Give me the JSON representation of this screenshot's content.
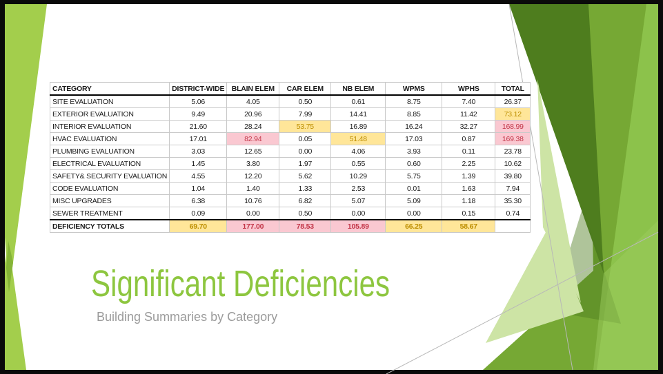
{
  "slide": {
    "title": "Significant Deficiencies",
    "subtitle": "Building Summaries by Category"
  },
  "table": {
    "columns": [
      "CATEGORY",
      "DISTRICT-WIDE",
      "BLAIN ELEM",
      "CAR ELEM",
      "NB ELEM",
      "WPMS",
      "WPHS",
      "TOTAL"
    ],
    "rows": [
      {
        "label": "SITE EVALUATION",
        "values": [
          "5.06",
          "4.05",
          "0.50",
          "0.61",
          "8.75",
          "7.40",
          "26.37"
        ],
        "marks": [
          "",
          "",
          "",
          "",
          "",
          "",
          ""
        ]
      },
      {
        "label": "EXTERIOR EVALUATION",
        "values": [
          "9.49",
          "20.96",
          "7.99",
          "14.41",
          "8.85",
          "11.42",
          "73.12"
        ],
        "marks": [
          "",
          "",
          "",
          "",
          "",
          "",
          "y"
        ]
      },
      {
        "label": "INTERIOR EVALUATION",
        "values": [
          "21.60",
          "28.24",
          "53.75",
          "16.89",
          "16.24",
          "32.27",
          "168.99"
        ],
        "marks": [
          "",
          "",
          "y",
          "",
          "",
          "",
          "p"
        ]
      },
      {
        "label": "HVAC EVALUATION",
        "values": [
          "17.01",
          "82.94",
          "0.05",
          "51.48",
          "17.03",
          "0.87",
          "169.38"
        ],
        "marks": [
          "",
          "p",
          "",
          "y",
          "",
          "",
          "p"
        ]
      },
      {
        "label": "PLUMBING EVALUATION",
        "values": [
          "3.03",
          "12.65",
          "0.00",
          "4.06",
          "3.93",
          "0.11",
          "23.78"
        ],
        "marks": [
          "",
          "",
          "",
          "",
          "",
          "",
          ""
        ]
      },
      {
        "label": "ELECTRICAL EVALUATION",
        "values": [
          "1.45",
          "3.80",
          "1.97",
          "0.55",
          "0.60",
          "2.25",
          "10.62"
        ],
        "marks": [
          "",
          "",
          "",
          "",
          "",
          "",
          ""
        ]
      },
      {
        "label": "SAFETY& SECURITY EVALUATION",
        "values": [
          "4.55",
          "12.20",
          "5.62",
          "10.29",
          "5.75",
          "1.39",
          "39.80"
        ],
        "marks": [
          "",
          "",
          "",
          "",
          "",
          "",
          ""
        ]
      },
      {
        "label": "CODE EVALUATION",
        "values": [
          "1.04",
          "1.40",
          "1.33",
          "2.53",
          "0.01",
          "1.63",
          "7.94"
        ],
        "marks": [
          "",
          "",
          "",
          "",
          "",
          "",
          ""
        ]
      },
      {
        "label": "MISC UPGRADES",
        "values": [
          "6.38",
          "10.76",
          "6.82",
          "5.07",
          "5.09",
          "1.18",
          "35.30"
        ],
        "marks": [
          "",
          "",
          "",
          "",
          "",
          "",
          ""
        ]
      },
      {
        "label": "SEWER TREATMENT",
        "values": [
          "0.09",
          "0.00",
          "0.50",
          "0.00",
          "0.00",
          "0.15",
          "0.74"
        ],
        "marks": [
          "",
          "",
          "",
          "",
          "",
          "",
          ""
        ]
      }
    ],
    "totals_row": {
      "label": "DEFICIENCY TOTALS",
      "values": [
        "69.70",
        "177.00",
        "78.53",
        "105.89",
        "66.25",
        "58.67",
        ""
      ],
      "marks": [
        "y",
        "p",
        "p",
        "p",
        "y",
        "y",
        ""
      ]
    }
  },
  "colors": {
    "title_green": "#8DC63F",
    "subtitle_gray": "#9B9B9B",
    "accent_light_green": "#A3CE4C",
    "accent_overlap_green": "#85B437",
    "facet_dark_green": "#4E7D1E",
    "facet_medium_green": "#76A834",
    "facet_light_green": "#8CC24B",
    "facet_pale_green": "#CDE4A5",
    "highlight_yellow_bg": "#FFE699",
    "highlight_yellow_text": "#BD8E00",
    "highlight_pink_bg": "#FAC8D1",
    "highlight_pink_text": "#C23447"
  }
}
